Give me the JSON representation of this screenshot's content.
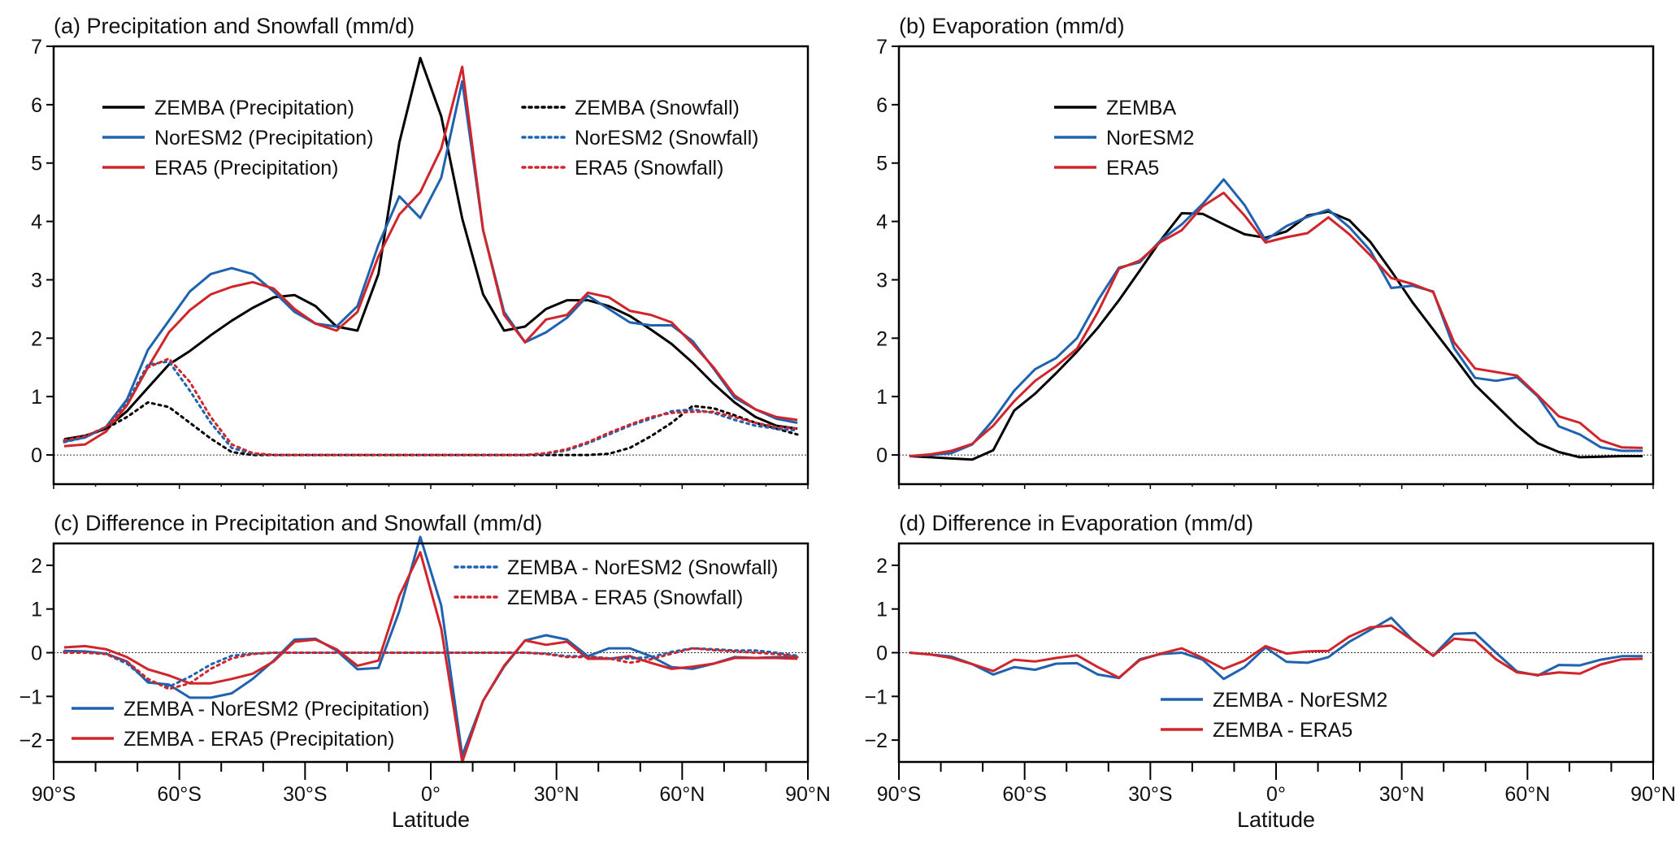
{
  "x_latitudes": [
    -87.5,
    -82.5,
    -77.5,
    -72.5,
    -67.5,
    -62.5,
    -57.5,
    -52.5,
    -47.5,
    -42.5,
    -37.5,
    -32.5,
    -27.5,
    -22.5,
    -17.5,
    -12.5,
    -7.5,
    -2.5,
    2.5,
    7.5,
    12.5,
    17.5,
    22.5,
    27.5,
    32.5,
    37.5,
    42.5,
    47.5,
    52.5,
    57.5,
    62.5,
    67.5,
    72.5,
    77.5,
    82.5,
    87.5
  ],
  "colors": {
    "zemba": "#000000",
    "noresm2": "#1f63b0",
    "era5": "#d0262b"
  },
  "chart_data": [
    {
      "id": "a",
      "type": "line",
      "title": "(a) Precipitation and Snowfall (mm/d)",
      "xlabel": "",
      "ylabel": "",
      "xlim": [
        -90,
        90
      ],
      "ylim": [
        -0.5,
        7
      ],
      "yticks": [
        "0",
        "1",
        "2",
        "3",
        "4",
        "5",
        "6",
        "7"
      ],
      "ytick_values": [
        0,
        1,
        2,
        3,
        4,
        5,
        6,
        7
      ],
      "grid": false,
      "zero_line": true,
      "legend_placement": "top",
      "series": [
        {
          "name": "ZEMBA (Precipitation)",
          "color": "zemba",
          "style": "solid",
          "values": [
            0.27,
            0.33,
            0.45,
            0.75,
            1.15,
            1.55,
            1.78,
            2.05,
            2.3,
            2.52,
            2.7,
            2.74,
            2.55,
            2.2,
            2.13,
            3.1,
            5.35,
            6.8,
            5.8,
            4.05,
            2.75,
            2.13,
            2.2,
            2.5,
            2.65,
            2.65,
            2.55,
            2.38,
            2.15,
            1.9,
            1.58,
            1.22,
            0.9,
            0.65,
            0.5,
            0.45
          ]
        },
        {
          "name": "NorESM2 (Precipitation)",
          "color": "noresm2",
          "style": "solid",
          "values": [
            0.23,
            0.3,
            0.48,
            0.95,
            1.8,
            2.3,
            2.8,
            3.1,
            3.2,
            3.1,
            2.8,
            2.45,
            2.25,
            2.2,
            2.55,
            3.6,
            4.43,
            4.06,
            4.75,
            6.4,
            3.85,
            2.45,
            1.93,
            2.1,
            2.35,
            2.73,
            2.5,
            2.27,
            2.22,
            2.22,
            1.95,
            1.48,
            0.98,
            0.78,
            0.62,
            0.55
          ]
        },
        {
          "name": "ERA5 (Precipitation)",
          "color": "era5",
          "style": "solid",
          "values": [
            0.15,
            0.18,
            0.4,
            0.85,
            1.5,
            2.1,
            2.48,
            2.75,
            2.88,
            2.96,
            2.85,
            2.5,
            2.25,
            2.13,
            2.45,
            3.4,
            4.12,
            4.5,
            5.25,
            6.65,
            3.85,
            2.4,
            1.93,
            2.32,
            2.4,
            2.78,
            2.7,
            2.47,
            2.4,
            2.27,
            1.9,
            1.5,
            1.02,
            0.78,
            0.65,
            0.6
          ]
        },
        {
          "name": "ZEMBA (Snowfall)",
          "color": "zemba",
          "style": "dotted",
          "values": [
            0.25,
            0.32,
            0.45,
            0.65,
            0.9,
            0.82,
            0.55,
            0.28,
            0.05,
            0,
            0,
            0,
            0,
            0,
            0,
            0,
            0,
            0,
            0,
            0,
            0,
            0,
            0,
            0,
            0,
            0,
            0.02,
            0.12,
            0.32,
            0.55,
            0.84,
            0.8,
            0.68,
            0.55,
            0.45,
            0.35
          ]
        },
        {
          "name": "NorESM2 (Snowfall)",
          "color": "noresm2",
          "style": "dotted",
          "values": [
            0.22,
            0.3,
            0.48,
            0.9,
            1.55,
            1.6,
            1.1,
            0.55,
            0.12,
            0.02,
            0,
            0,
            0,
            0,
            0,
            0,
            0,
            0,
            0,
            0,
            0,
            0,
            0,
            0.02,
            0.08,
            0.2,
            0.35,
            0.5,
            0.62,
            0.75,
            0.78,
            0.72,
            0.6,
            0.5,
            0.45,
            0.42
          ]
        },
        {
          "name": "ERA5 (Snowfall)",
          "color": "era5",
          "style": "dotted",
          "values": [
            0.25,
            0.32,
            0.48,
            0.85,
            1.5,
            1.65,
            1.25,
            0.65,
            0.18,
            0.03,
            0,
            0,
            0,
            0,
            0,
            0,
            0,
            0,
            0,
            0,
            0,
            0,
            0,
            0.03,
            0.1,
            0.22,
            0.38,
            0.52,
            0.65,
            0.72,
            0.74,
            0.74,
            0.65,
            0.55,
            0.48,
            0.45
          ]
        }
      ],
      "legend_left": [
        "ZEMBA (Precipitation)",
        "NorESM2 (Precipitation)",
        "ERA5 (Precipitation)"
      ],
      "legend_right": [
        "ZEMBA (Snowfall)",
        "NorESM2 (Snowfall)",
        "ERA5 (Snowfall)"
      ]
    },
    {
      "id": "b",
      "type": "line",
      "title": "(b) Evaporation (mm/d)",
      "xlabel": "",
      "ylabel": "",
      "xlim": [
        -90,
        90
      ],
      "ylim": [
        -0.5,
        7
      ],
      "yticks": [
        "0",
        "1",
        "2",
        "3",
        "4",
        "5",
        "6",
        "7"
      ],
      "ytick_values": [
        0,
        1,
        2,
        3,
        4,
        5,
        6,
        7
      ],
      "grid": false,
      "zero_line": true,
      "legend_placement": "top-left",
      "series": [
        {
          "name": "ZEMBA",
          "color": "zemba",
          "style": "solid",
          "values": [
            -0.02,
            -0.04,
            -0.06,
            -0.08,
            0.08,
            0.76,
            1.05,
            1.4,
            1.77,
            2.18,
            2.65,
            3.16,
            3.68,
            4.14,
            4.13,
            3.95,
            3.78,
            3.72,
            3.83,
            4.1,
            4.17,
            4.02,
            3.65,
            3.15,
            2.62,
            2.15,
            1.68,
            1.2,
            0.85,
            0.5,
            0.2,
            0.05,
            -0.04,
            -0.03,
            -0.02,
            -0.02
          ]
        },
        {
          "name": "NorESM2",
          "color": "noresm2",
          "style": "solid",
          "values": [
            -0.02,
            0.0,
            0.03,
            0.18,
            0.6,
            1.1,
            1.47,
            1.66,
            2.0,
            2.65,
            3.21,
            3.3,
            3.68,
            3.95,
            4.3,
            4.72,
            4.28,
            3.68,
            3.92,
            4.08,
            4.2,
            3.9,
            3.5,
            2.86,
            2.9,
            2.8,
            1.83,
            1.32,
            1.27,
            1.33,
            1.0,
            0.49,
            0.35,
            0.13,
            0.07,
            0.07
          ]
        },
        {
          "name": "ERA5",
          "color": "era5",
          "style": "solid",
          "values": [
            -0.02,
            0.01,
            0.07,
            0.19,
            0.5,
            0.92,
            1.27,
            1.52,
            1.82,
            2.45,
            3.19,
            3.33,
            3.65,
            3.85,
            4.26,
            4.49,
            4.1,
            3.64,
            3.73,
            3.8,
            4.07,
            3.78,
            3.42,
            3.03,
            2.93,
            2.79,
            1.93,
            1.48,
            1.42,
            1.36,
            1.02,
            0.66,
            0.55,
            0.25,
            0.13,
            0.12
          ]
        }
      ],
      "legend": [
        "ZEMBA",
        "NorESM2",
        "ERA5"
      ]
    },
    {
      "id": "c",
      "type": "line",
      "title": "(c) Difference in Precipitation and Snowfall (mm/d)",
      "xlabel": "Latitude",
      "ylabel": "",
      "xlim": [
        -90,
        90
      ],
      "ylim": [
        -2.5,
        2.5
      ],
      "yticks": [
        "−2",
        "−1",
        "0",
        "1",
        "2"
      ],
      "ytick_values": [
        -2,
        -1,
        0,
        1,
        2
      ],
      "xticks": [
        "90°S",
        "60°S",
        "30°S",
        "0°",
        "30°N",
        "60°N",
        "90°N"
      ],
      "xtick_values": [
        -90,
        -60,
        -30,
        0,
        30,
        60,
        90
      ],
      "grid": false,
      "zero_line": true,
      "legend_placement": "bottom-left / top-right",
      "series": [
        {
          "name": "ZEMBA - NorESM2 (Precipitation)",
          "color": "noresm2",
          "style": "solid",
          "values": [
            0.04,
            0.03,
            -0.02,
            -0.2,
            -0.68,
            -0.73,
            -1.03,
            -1.03,
            -0.93,
            -0.6,
            -0.18,
            0.3,
            0.32,
            0.05,
            -0.38,
            -0.35,
            0.95,
            2.65,
            1.08,
            -2.35,
            -1.1,
            -0.32,
            0.28,
            0.4,
            0.3,
            -0.08,
            0.1,
            0.1,
            -0.08,
            -0.33,
            -0.37,
            -0.25,
            -0.1,
            -0.12,
            -0.1,
            -0.1
          ]
        },
        {
          "name": "ZEMBA - ERA5 (Precipitation)",
          "color": "era5",
          "style": "solid",
          "values": [
            0.12,
            0.15,
            0.08,
            -0.1,
            -0.38,
            -0.52,
            -0.7,
            -0.7,
            -0.6,
            -0.48,
            -0.2,
            0.25,
            0.3,
            0.08,
            -0.3,
            -0.18,
            1.3,
            2.3,
            0.55,
            -2.5,
            -1.1,
            -0.3,
            0.28,
            0.18,
            0.25,
            -0.14,
            -0.14,
            -0.08,
            -0.23,
            -0.37,
            -0.32,
            -0.25,
            -0.12,
            -0.12,
            -0.12,
            -0.14
          ]
        },
        {
          "name": "ZEMBA - NorESM2 (Snowfall)",
          "color": "noresm2",
          "style": "dotted",
          "values": [
            0.03,
            0.02,
            -0.03,
            -0.25,
            -0.65,
            -0.78,
            -0.55,
            -0.27,
            -0.07,
            -0.02,
            0,
            0,
            0,
            0,
            0,
            0,
            0,
            0,
            0,
            0,
            0,
            0,
            0,
            -0.02,
            -0.08,
            -0.08,
            -0.13,
            -0.13,
            -0.1,
            0.02,
            0.1,
            0.08,
            0.05,
            0.05,
            0.0,
            -0.07
          ]
        },
        {
          "name": "ZEMBA - ERA5 (Snowfall)",
          "color": "era5",
          "style": "dotted",
          "values": [
            0.0,
            0.0,
            -0.03,
            -0.2,
            -0.6,
            -0.83,
            -0.7,
            -0.37,
            -0.13,
            -0.03,
            0,
            0,
            0,
            0,
            0,
            0,
            0,
            0,
            0,
            0,
            0,
            0,
            0,
            -0.03,
            -0.1,
            -0.1,
            -0.13,
            -0.23,
            -0.15,
            -0.02,
            0.1,
            0.06,
            0.03,
            0.0,
            -0.03,
            -0.1
          ]
        }
      ],
      "legend_left": [
        "ZEMBA  - NorESM2 (Precipitation)",
        "ZEMBA  - ERA5 (Precipitation)"
      ],
      "legend_right": [
        "ZEMBA - NorESM2 (Snowfall)",
        "ZEMBA - ERA5 (Snowfall)"
      ]
    },
    {
      "id": "d",
      "type": "line",
      "title": "(d) Difference in Evaporation (mm/d)",
      "xlabel": "Latitude",
      "ylabel": "",
      "xlim": [
        -90,
        90
      ],
      "ylim": [
        -2.5,
        2.5
      ],
      "yticks": [
        "−2",
        "−1",
        "0",
        "1",
        "2"
      ],
      "ytick_values": [
        -2,
        -1,
        0,
        1,
        2
      ],
      "xticks": [
        "90°S",
        "60°S",
        "30°S",
        "0°",
        "30°N",
        "60°N",
        "90°N"
      ],
      "xtick_values": [
        -90,
        -60,
        -30,
        0,
        30,
        60,
        90
      ],
      "grid": false,
      "zero_line": true,
      "legend_placement": "bottom-center",
      "series": [
        {
          "name": "ZEMBA - NorESM2",
          "color": "noresm2",
          "style": "solid",
          "values": [
            0.0,
            -0.04,
            -0.09,
            -0.26,
            -0.5,
            -0.33,
            -0.39,
            -0.25,
            -0.24,
            -0.5,
            -0.58,
            -0.15,
            -0.03,
            0.0,
            -0.16,
            -0.6,
            -0.33,
            0.12,
            -0.21,
            -0.23,
            -0.1,
            0.25,
            0.52,
            0.8,
            0.3,
            -0.07,
            0.43,
            0.45,
            0.0,
            -0.43,
            -0.52,
            -0.28,
            -0.29,
            -0.16,
            -0.08,
            -0.08
          ]
        },
        {
          "name": "ZEMBA - ERA5",
          "color": "era5",
          "style": "solid",
          "values": [
            0.0,
            -0.04,
            -0.12,
            -0.26,
            -0.42,
            -0.16,
            -0.2,
            -0.12,
            -0.06,
            -0.33,
            -0.57,
            -0.17,
            -0.02,
            0.1,
            -0.12,
            -0.37,
            -0.18,
            0.15,
            -0.02,
            0.03,
            0.04,
            0.37,
            0.58,
            0.62,
            0.29,
            -0.07,
            0.32,
            0.28,
            -0.15,
            -0.45,
            -0.51,
            -0.45,
            -0.48,
            -0.27,
            -0.15,
            -0.14
          ]
        }
      ],
      "legend": [
        "ZEMBA - NorESM2",
        "ZEMBA - ERA5"
      ]
    }
  ]
}
